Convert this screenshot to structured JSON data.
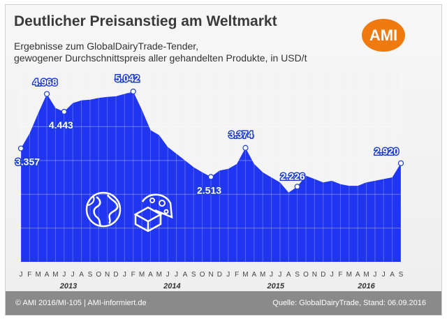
{
  "title": "Deutlicher Preisanstieg am Weltmarkt",
  "subtitle_line1": "Ergebnisse zum GlobalDairyTrade-Tender,",
  "subtitle_line2": "gewogener Durchschnittspreis aller gehandelten Produkte, in USD/t",
  "logo": "AMI",
  "footer_left": "© AMI 2016/MI-105 | AMI-informiert.de",
  "footer_right": "Quelle: GlobalDairyTrade, Stand: 06.09.2016",
  "colors": {
    "area": "#1f35f0",
    "grid": "#ffffff",
    "logo": "#ef7a10",
    "footer": "#8a8a8a"
  },
  "icons": [
    "globe-icon",
    "cheese-icon"
  ],
  "chart_data": {
    "type": "area",
    "title": "Deutlicher Preisanstieg am Weltmarkt",
    "ylabel": "USD/t",
    "ylim": [
      0,
      5600
    ],
    "grid": true,
    "legend": "none",
    "x": [
      "2013-01",
      "2013-02",
      "2013-03",
      "2013-04",
      "2013-05",
      "2013-06",
      "2013-07",
      "2013-08",
      "2013-09",
      "2013-10",
      "2013-11",
      "2013-12",
      "2014-01",
      "2014-02",
      "2014-03",
      "2014-04",
      "2014-05",
      "2014-06",
      "2014-07",
      "2014-08",
      "2014-09",
      "2014-10",
      "2014-11",
      "2014-12",
      "2015-01",
      "2015-02",
      "2015-03",
      "2015-04",
      "2015-05",
      "2015-06",
      "2015-07",
      "2015-08",
      "2015-09",
      "2015-10",
      "2015-11",
      "2015-12",
      "2016-01",
      "2016-02",
      "2016-03",
      "2016-04",
      "2016-05",
      "2016-06",
      "2016-07",
      "2016-08",
      "2016-09"
    ],
    "values": [
      3357,
      3800,
      4400,
      4968,
      4550,
      4443,
      4700,
      4780,
      4800,
      4850,
      4880,
      4900,
      4970,
      5042,
      4500,
      3900,
      3750,
      3400,
      3200,
      3000,
      2800,
      2650,
      2513,
      2700,
      2750,
      2900,
      3374,
      2900,
      2650,
      2500,
      2350,
      2050,
      2226,
      2550,
      2450,
      2350,
      2400,
      2300,
      2250,
      2250,
      2350,
      2400,
      2450,
      2500,
      2920
    ],
    "labels": [
      {
        "x": "2013-01",
        "value": "3.357"
      },
      {
        "x": "2013-04",
        "value": "4.968"
      },
      {
        "x": "2013-06",
        "value": "4.443"
      },
      {
        "x": "2014-02",
        "value": "5.042"
      },
      {
        "x": "2014-11",
        "value": "2.513"
      },
      {
        "x": "2015-03",
        "value": "3.374"
      },
      {
        "x": "2015-09",
        "value": "2.226"
      },
      {
        "x": "2016-09",
        "value": "2.920"
      }
    ],
    "month_ticks": [
      "J",
      "F",
      "M",
      "A",
      "M",
      "J",
      "J",
      "A",
      "S",
      "O",
      "N",
      "D",
      "J",
      "F",
      "M",
      "A",
      "M",
      "J",
      "J",
      "A",
      "S",
      "O",
      "N",
      "D",
      "J",
      "F",
      "M",
      "A",
      "M",
      "J",
      "J",
      "A",
      "S",
      "O",
      "N",
      "D",
      "J",
      "F",
      "M",
      "A",
      "M",
      "J",
      "J",
      "A",
      "S"
    ],
    "years": [
      {
        "label": "2013",
        "start": 0,
        "end": 11
      },
      {
        "label": "2014",
        "start": 12,
        "end": 23
      },
      {
        "label": "2015",
        "start": 24,
        "end": 35
      },
      {
        "label": "2016",
        "start": 36,
        "end": 44
      }
    ]
  }
}
